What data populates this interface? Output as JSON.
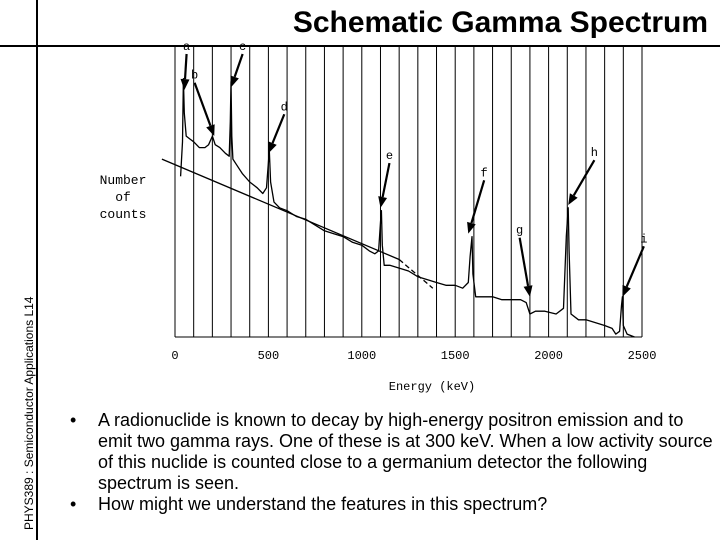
{
  "slide": {
    "title": "Schematic Gamma Spectrum",
    "side_label": "PHYS389 : Semiconductor Applications L14",
    "bullets": [
      "A radionuclide is known to decay by high-energy positron emission and to emit two gamma rays.  One of these is at 300 keV.  When a low activity source of this nuclide is counted close to a germanium detector the following spectrum is seen.",
      "How might we understand the features in this spectrum?"
    ]
  },
  "chart_data": {
    "type": "line",
    "title": "Schematic Gamma Spectrum",
    "xlabel": "Energy (keV)",
    "ylabel": "Number of counts",
    "xlim": [
      0,
      2500
    ],
    "x_ticks": [
      "0",
      "500",
      "1000",
      "1500",
      "2000",
      "2500"
    ],
    "grid": "vertical lines every 100 keV",
    "y_ticks": [],
    "series": [
      {
        "style": "solid",
        "color": "#000000",
        "points": [
          [
            30,
            0.56
          ],
          [
            40,
            0.68
          ],
          [
            45,
            0.9
          ],
          [
            50,
            0.78
          ],
          [
            60,
            0.7
          ],
          [
            80,
            0.69
          ],
          [
            100,
            0.68
          ],
          [
            130,
            0.66
          ],
          [
            160,
            0.66
          ],
          [
            180,
            0.67
          ],
          [
            200,
            0.7
          ],
          [
            215,
            0.67
          ],
          [
            240,
            0.66
          ],
          [
            270,
            0.64
          ],
          [
            290,
            0.63
          ],
          [
            296,
            0.75
          ],
          [
            300,
            0.89
          ],
          [
            304,
            0.7
          ],
          [
            310,
            0.62
          ],
          [
            330,
            0.6
          ],
          [
            360,
            0.57
          ],
          [
            400,
            0.54
          ],
          [
            440,
            0.52
          ],
          [
            470,
            0.5
          ],
          [
            490,
            0.52
          ],
          [
            505,
            0.65
          ],
          [
            512,
            0.54
          ],
          [
            530,
            0.47
          ],
          [
            560,
            0.45
          ],
          [
            600,
            0.44
          ],
          [
            650,
            0.42
          ],
          [
            700,
            0.41
          ],
          [
            750,
            0.39
          ],
          [
            800,
            0.37
          ],
          [
            850,
            0.36
          ],
          [
            900,
            0.35
          ],
          [
            950,
            0.33
          ],
          [
            1000,
            0.32
          ],
          [
            1040,
            0.3
          ],
          [
            1070,
            0.29
          ],
          [
            1090,
            0.3
          ],
          [
            1100,
            0.4
          ],
          [
            1105,
            0.44
          ],
          [
            1110,
            0.32
          ],
          [
            1120,
            0.25
          ],
          [
            1150,
            0.25
          ],
          [
            1200,
            0.24
          ],
          [
            1250,
            0.23
          ],
          [
            1300,
            0.21
          ],
          [
            1350,
            0.2
          ],
          [
            1400,
            0.19
          ],
          [
            1450,
            0.18
          ],
          [
            1500,
            0.18
          ],
          [
            1540,
            0.17
          ],
          [
            1570,
            0.19
          ],
          [
            1580,
            0.28
          ],
          [
            1590,
            0.35
          ],
          [
            1595,
            0.22
          ],
          [
            1610,
            0.14
          ],
          [
            1650,
            0.14
          ],
          [
            1700,
            0.14
          ],
          [
            1750,
            0.13
          ],
          [
            1800,
            0.13
          ],
          [
            1850,
            0.13
          ],
          [
            1880,
            0.12
          ],
          [
            1900,
            0.08
          ],
          [
            1930,
            0.09
          ],
          [
            1980,
            0.09
          ],
          [
            2040,
            0.08
          ],
          [
            2080,
            0.1
          ],
          [
            2095,
            0.35
          ],
          [
            2105,
            0.45
          ],
          [
            2110,
            0.3
          ],
          [
            2120,
            0.08
          ],
          [
            2160,
            0.06
          ],
          [
            2200,
            0.06
          ],
          [
            2250,
            0.05
          ],
          [
            2300,
            0.04
          ],
          [
            2340,
            0.03
          ],
          [
            2360,
            0.01
          ],
          [
            2380,
            0.02
          ],
          [
            2390,
            0.11
          ],
          [
            2395,
            0.14
          ],
          [
            2400,
            0.04
          ],
          [
            2420,
            0.01
          ],
          [
            2460,
            0.0
          ]
        ]
      },
      {
        "style": "solid",
        "color": "#000000",
        "points": [
          [
            -70,
            0.62
          ],
          [
            1200,
            0.27
          ]
        ]
      },
      {
        "style": "dashed",
        "color": "#000000",
        "points": [
          [
            1200,
            0.27
          ],
          [
            1380,
            0.17
          ]
        ]
      }
    ],
    "annotations": [
      {
        "label": "a",
        "x": 62,
        "y": 1.0,
        "arrow_to": [
          50,
          0.86
        ]
      },
      {
        "label": "b",
        "x": 105,
        "y": 0.9,
        "arrow_to": [
          210,
          0.7
        ]
      },
      {
        "label": "c",
        "x": 362,
        "y": 1.0,
        "arrow_to": [
          300,
          0.87
        ]
      },
      {
        "label": "d",
        "x": 585,
        "y": 0.79,
        "arrow_to": [
          500,
          0.64
        ]
      },
      {
        "label": "e",
        "x": 1148,
        "y": 0.62,
        "arrow_to": [
          1100,
          0.45
        ]
      },
      {
        "label": "f",
        "x": 1655,
        "y": 0.56,
        "arrow_to": [
          1570,
          0.36
        ]
      },
      {
        "label": "g",
        "x": 1845,
        "y": 0.36,
        "arrow_to": [
          1900,
          0.14
        ]
      },
      {
        "label": "h",
        "x": 2245,
        "y": 0.63,
        "arrow_to": [
          2105,
          0.46
        ]
      },
      {
        "label": "i",
        "x": 2510,
        "y": 0.33,
        "arrow_to": [
          2395,
          0.14
        ]
      }
    ]
  }
}
